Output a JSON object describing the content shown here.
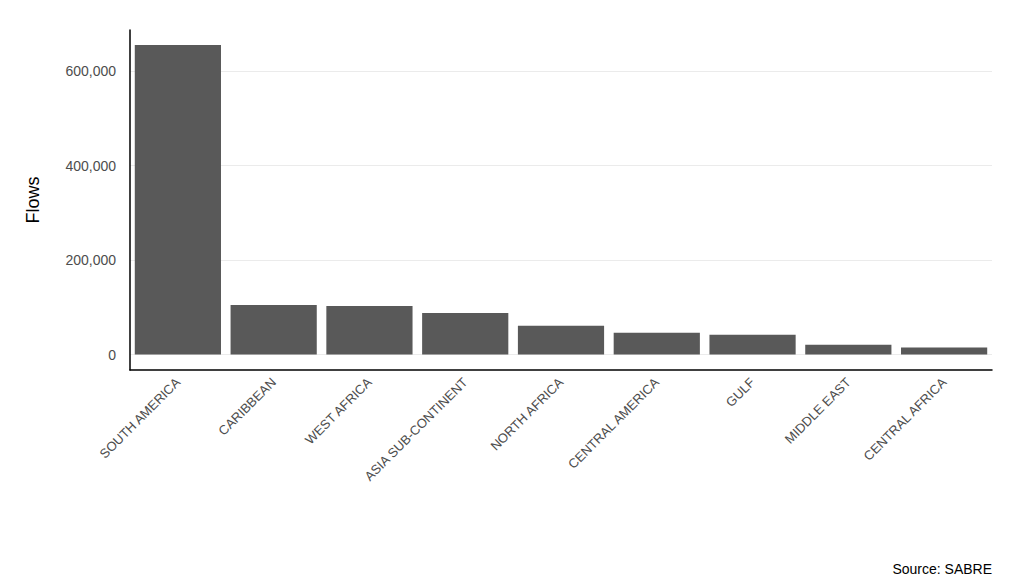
{
  "chart_data": {
    "type": "bar",
    "y_label": "Flows",
    "caption": "Source: SABRE",
    "categories": [
      "SOUTH AMERICA",
      "CARIBBEAN",
      "WEST AFRICA",
      "ASIA SUB-CONTINENT",
      "NORTH AFRICA",
      "CENTRAL AMERICA",
      "GULF",
      "MIDDLE EAST",
      "CENTRAL AFRICA"
    ],
    "values": [
      655000,
      105000,
      103000,
      88000,
      61000,
      46000,
      42000,
      21000,
      15000
    ],
    "color": "#595959",
    "ylim": [
      -32700,
      687000
    ],
    "yticks": [
      0,
      {
        "value": 200000,
        "label": "200,000"
      },
      {
        "value": 400000,
        "label": "400,000"
      },
      {
        "value": 600000,
        "label": "600,000"
      }
    ],
    "grid": true
  }
}
